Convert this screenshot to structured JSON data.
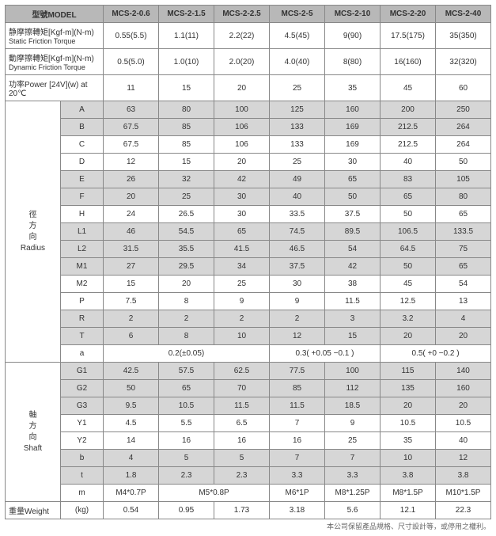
{
  "header": {
    "model_label": "型號MODEL",
    "models": [
      "MCS-2-0.6",
      "MCS-2-1.5",
      "MCS-2-2.5",
      "MCS-2-5",
      "MCS-2-10",
      "MCS-2-20",
      "MCS-2-40"
    ]
  },
  "topRows": [
    {
      "label": "静摩擦轉矩[Kgf-m](N-m)",
      "sub": "Static Friction Torque",
      "vals": [
        "0.55(5.5)",
        "1.1(11)",
        "2.2(22)",
        "4.5(45)",
        "9(90)",
        "17.5(175)",
        "35(350)"
      ]
    },
    {
      "label": "動摩擦轉矩[Kgf-m](N-m)",
      "sub": "Dynamic Friction Torque",
      "vals": [
        "0.5(5.0)",
        "1.0(10)",
        "2.0(20)",
        "4.0(40)",
        "8(80)",
        "16(160)",
        "32(320)"
      ]
    },
    {
      "label": "功率Power [24V](w) at 20℃",
      "sub": "",
      "vals": [
        "11",
        "15",
        "20",
        "25",
        "35",
        "45",
        "60"
      ]
    }
  ],
  "radius": {
    "label_lines": [
      "徑",
      "方",
      "向",
      "Radius"
    ],
    "rows": [
      {
        "k": "A",
        "band": true,
        "vals": [
          "63",
          "80",
          "100",
          "125",
          "160",
          "200",
          "250"
        ]
      },
      {
        "k": "B",
        "band": true,
        "vals": [
          "67.5",
          "85",
          "106",
          "133",
          "169",
          "212.5",
          "264"
        ]
      },
      {
        "k": "C",
        "band": false,
        "vals": [
          "67.5",
          "85",
          "106",
          "133",
          "169",
          "212.5",
          "264"
        ]
      },
      {
        "k": "D",
        "band": false,
        "vals": [
          "12",
          "15",
          "20",
          "25",
          "30",
          "40",
          "50"
        ]
      },
      {
        "k": "E",
        "band": true,
        "vals": [
          "26",
          "32",
          "42",
          "49",
          "65",
          "83",
          "105"
        ]
      },
      {
        "k": "F",
        "band": true,
        "vals": [
          "20",
          "25",
          "30",
          "40",
          "50",
          "65",
          "80"
        ]
      },
      {
        "k": "H",
        "band": false,
        "vals": [
          "24",
          "26.5",
          "30",
          "33.5",
          "37.5",
          "50",
          "65"
        ]
      },
      {
        "k": "L1",
        "band": true,
        "vals": [
          "46",
          "54.5",
          "65",
          "74.5",
          "89.5",
          "106.5",
          "133.5"
        ]
      },
      {
        "k": "L2",
        "band": true,
        "vals": [
          "31.5",
          "35.5",
          "41.5",
          "46.5",
          "54",
          "64.5",
          "75"
        ]
      },
      {
        "k": "M1",
        "band": true,
        "vals": [
          "27",
          "29.5",
          "34",
          "37.5",
          "42",
          "50",
          "65"
        ]
      },
      {
        "k": "M2",
        "band": false,
        "vals": [
          "15",
          "20",
          "25",
          "30",
          "38",
          "45",
          "54"
        ]
      },
      {
        "k": "P",
        "band": false,
        "vals": [
          "7.5",
          "8",
          "9",
          "9",
          "11.5",
          "12.5",
          "13"
        ]
      },
      {
        "k": "R",
        "band": true,
        "vals": [
          "2",
          "2",
          "2",
          "2",
          "3",
          "3.2",
          "4"
        ]
      },
      {
        "k": "T",
        "band": true,
        "vals": [
          "6",
          "8",
          "10",
          "12",
          "15",
          "20",
          "20"
        ]
      }
    ],
    "a_row": {
      "k": "a",
      "spans": [
        {
          "text": "0.2(±0.05)",
          "cols": 3
        },
        {
          "text": "0.3( +0.05 −0.1 )",
          "cols": 2
        },
        {
          "text": "0.5( +0 −0.2 )",
          "cols": 2
        }
      ]
    }
  },
  "shaft": {
    "label_lines": [
      "軸",
      "方",
      "向",
      "Shaft"
    ],
    "rows": [
      {
        "k": "G1",
        "band": true,
        "vals": [
          "42.5",
          "57.5",
          "62.5",
          "77.5",
          "100",
          "115",
          "140"
        ]
      },
      {
        "k": "G2",
        "band": true,
        "vals": [
          "50",
          "65",
          "70",
          "85",
          "112",
          "135",
          "160"
        ]
      },
      {
        "k": "G3",
        "band": true,
        "vals": [
          "9.5",
          "10.5",
          "11.5",
          "11.5",
          "18.5",
          "20",
          "20"
        ]
      },
      {
        "k": "Y1",
        "band": false,
        "vals": [
          "4.5",
          "5.5",
          "6.5",
          "7",
          "9",
          "10.5",
          "10.5"
        ]
      },
      {
        "k": "Y2",
        "band": false,
        "vals": [
          "14",
          "16",
          "16",
          "16",
          "25",
          "35",
          "40"
        ]
      },
      {
        "k": "b",
        "band": true,
        "vals": [
          "4",
          "5",
          "5",
          "7",
          "7",
          "10",
          "12"
        ]
      },
      {
        "k": "t",
        "band": true,
        "vals": [
          "1.8",
          "2.3",
          "2.3",
          "3.3",
          "3.3",
          "3.8",
          "3.8"
        ]
      }
    ],
    "m_row": {
      "k": "m",
      "spans": [
        {
          "text": "M4*0.7P",
          "cols": 1
        },
        {
          "text": "M5*0.8P",
          "cols": 2
        },
        {
          "text": "M6*1P",
          "cols": 1
        },
        {
          "text": "M8*1.25P",
          "cols": 1
        },
        {
          "text": "M8*1.5P",
          "cols": 1
        },
        {
          "text": "M10*1.5P",
          "cols": 1
        }
      ]
    }
  },
  "weight": {
    "label": "重量Weight",
    "unit": "(kg)",
    "vals": [
      "0.54",
      "0.95",
      "1.73",
      "3.18",
      "5.6",
      "12.1",
      "22.3"
    ]
  },
  "footer": "本公司保留產品規格、尺寸設計等，或停用之權利。"
}
